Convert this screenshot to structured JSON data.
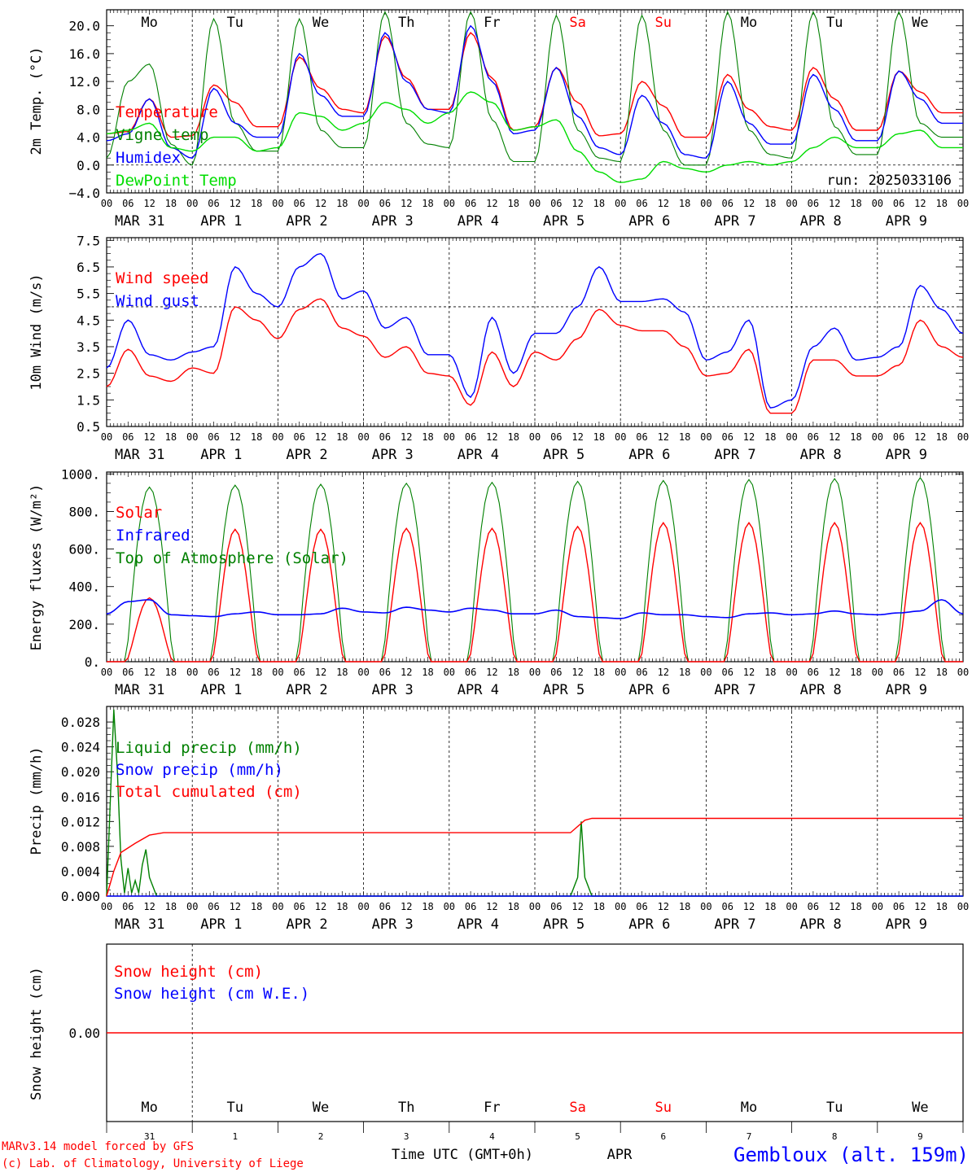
{
  "days": [
    {
      "abbr": "Mo",
      "color": "#000000",
      "date_label": "MAR 31",
      "day_num": "31"
    },
    {
      "abbr": "Tu",
      "color": "#000000",
      "date_label": "APR  1",
      "day_num": "1"
    },
    {
      "abbr": "We",
      "color": "#000000",
      "date_label": "APR  2",
      "day_num": "2"
    },
    {
      "abbr": "Th",
      "color": "#000000",
      "date_label": "APR  3",
      "day_num": "3"
    },
    {
      "abbr": "Fr",
      "color": "#000000",
      "date_label": "APR  4",
      "day_num": "4"
    },
    {
      "abbr": "Sa",
      "color": "#ff0000",
      "date_label": "APR  5",
      "day_num": "5"
    },
    {
      "abbr": "Su",
      "color": "#ff0000",
      "date_label": "APR  6",
      "day_num": "6"
    },
    {
      "abbr": "Mo",
      "color": "#000000",
      "date_label": "APR  7",
      "day_num": "7"
    },
    {
      "abbr": "Tu",
      "color": "#000000",
      "date_label": "APR  8",
      "day_num": "8"
    },
    {
      "abbr": "We",
      "color": "#000000",
      "date_label": "APR  9",
      "day_num": "9"
    }
  ],
  "hour_ticks": [
    "00",
    "06",
    "12",
    "18"
  ],
  "footer": {
    "credit_line1": "MARv3.14 model forced by GFS",
    "credit_line2": "(c) Lab. of Climatology, University of Liege",
    "xaxis_label": "Time UTC (GMT+0h)",
    "month": "APR",
    "station": "Gembloux (alt. 159m)"
  },
  "colors": {
    "red": "#ff0000",
    "blue": "#0000ff",
    "green": "#008000",
    "lightgreen": "#00dd00"
  },
  "chart_data": [
    {
      "type": "line",
      "ylabel": "2m Temp. (°C)",
      "ylim": [
        -4,
        22
      ],
      "yticks": [
        "20.0",
        "16.0",
        "12.0",
        "8.0",
        "4.0",
        "0.0",
        "−4.0"
      ],
      "yticks_values": [
        20,
        16,
        12,
        8,
        4,
        0,
        -4
      ],
      "ref_line": 0,
      "annotation": "run: 2025033106",
      "x_start": "2025-03-31 00:00 UTC",
      "x_step_hours": 6,
      "series": [
        {
          "name": "Temperature",
          "color": "#ff0000",
          "values": [
            4.5,
            4.8,
            9.5,
            4.0,
            4.2,
            11.5,
            9.0,
            5.5,
            5.5,
            15.5,
            11.0,
            8.0,
            7.5,
            18.5,
            12.5,
            8.0,
            8.0,
            19.0,
            12.5,
            5.0,
            5.5,
            14.0,
            9.0,
            4.2,
            4.5,
            12.0,
            8.5,
            4.0,
            4.0,
            13.0,
            8.0,
            5.5,
            5.0,
            14.0,
            9.5,
            5.0,
            5.0,
            13.5,
            10.5,
            7.5,
            7.5
          ]
        },
        {
          "name": "Vigne temp",
          "color": "#008000",
          "values": [
            1.0,
            12.0,
            14.5,
            3.0,
            0.0,
            21.0,
            6.0,
            2.0,
            2.0,
            21.0,
            5.0,
            2.5,
            2.5,
            22.0,
            6.0,
            3.0,
            2.5,
            22.0,
            6.5,
            0.5,
            0.5,
            21.5,
            5.0,
            1.0,
            0.5,
            21.5,
            5.0,
            0.0,
            0.0,
            22.0,
            5.0,
            1.5,
            1.0,
            22.0,
            5.5,
            1.5,
            1.5,
            22.0,
            6.0,
            4.0,
            4.0
          ]
        },
        {
          "name": "Humidex",
          "color": "#0000ff",
          "values": [
            3.5,
            4.5,
            9.5,
            2.5,
            1.0,
            11.0,
            6.0,
            4.0,
            4.0,
            16.0,
            10.0,
            7.0,
            7.0,
            19.0,
            12.0,
            8.0,
            7.5,
            20.0,
            12.0,
            4.5,
            5.0,
            14.0,
            7.0,
            2.5,
            1.5,
            10.0,
            6.0,
            1.5,
            1.0,
            12.0,
            6.0,
            3.0,
            3.0,
            13.0,
            8.0,
            3.5,
            3.5,
            13.5,
            9.5,
            6.0,
            6.0
          ]
        },
        {
          "name": "DewPoint Temp",
          "color": "#00dd00",
          "values": [
            4.5,
            5.0,
            6.0,
            2.5,
            2.0,
            4.0,
            4.0,
            2.0,
            2.5,
            7.5,
            7.0,
            5.0,
            6.0,
            9.0,
            8.0,
            6.0,
            7.5,
            10.5,
            9.0,
            5.0,
            5.5,
            6.5,
            2.0,
            -1.0,
            -2.5,
            -2.0,
            0.5,
            -0.5,
            -1.0,
            0.0,
            0.5,
            0.0,
            0.5,
            2.5,
            4.0,
            2.5,
            2.5,
            4.5,
            5.0,
            2.5,
            2.5
          ]
        }
      ]
    },
    {
      "type": "line",
      "ylabel": "10m Wind (m/s)",
      "ylim": [
        0.5,
        7.5
      ],
      "yticks": [
        "7.5",
        "6.5",
        "5.5",
        "4.5",
        "3.5",
        "2.5",
        "1.5",
        "0.5"
      ],
      "yticks_values": [
        7.5,
        6.5,
        5.5,
        4.5,
        3.5,
        2.5,
        1.5,
        0.5
      ],
      "ref_line": 5.0,
      "x_start": "2025-03-31 00:00 UTC",
      "x_step_hours": 6,
      "series": [
        {
          "name": "Wind speed",
          "color": "#ff0000",
          "values": [
            2.0,
            3.4,
            2.4,
            2.2,
            2.7,
            2.5,
            5.0,
            4.5,
            3.8,
            4.9,
            5.3,
            4.2,
            3.9,
            3.1,
            3.5,
            2.5,
            2.4,
            1.3,
            3.3,
            2.0,
            3.3,
            3.0,
            3.8,
            4.9,
            4.3,
            4.1,
            4.1,
            3.5,
            2.4,
            2.5,
            3.4,
            1.0,
            1.0,
            3.0,
            3.0,
            2.4,
            2.4,
            2.8,
            4.5,
            3.5,
            3.1
          ]
        },
        {
          "name": "Wind gust",
          "color": "#0000ff",
          "values": [
            2.7,
            4.5,
            3.2,
            3.0,
            3.3,
            3.5,
            6.5,
            5.5,
            5.0,
            6.5,
            7.0,
            5.3,
            5.6,
            4.2,
            4.6,
            3.2,
            3.2,
            1.6,
            4.6,
            2.5,
            4.0,
            4.0,
            5.0,
            6.5,
            5.2,
            5.2,
            5.3,
            4.8,
            3.0,
            3.3,
            4.5,
            1.2,
            1.5,
            3.5,
            4.2,
            3.0,
            3.1,
            3.5,
            5.8,
            4.9,
            4.0
          ]
        }
      ]
    },
    {
      "type": "line",
      "ylabel": "Energy fluxes (W/m²)",
      "ylim": [
        0,
        1000
      ],
      "yticks": [
        "1000.",
        "800.",
        "600.",
        "400.",
        "200.",
        "0."
      ],
      "yticks_values": [
        1000,
        800,
        600,
        400,
        200,
        0
      ],
      "daily_peaks": {
        "solar_w_m2": [
          340,
          705,
          705,
          710,
          710,
          720,
          740,
          740,
          740,
          740
        ],
        "toa_solar_w_m2": [
          930,
          940,
          945,
          950,
          955,
          960,
          965,
          970,
          975,
          980
        ],
        "sunrise_hour_utc": 5.5,
        "sunset_hour_utc": 18.5
      },
      "series": [
        {
          "name": "Solar",
          "color": "#ff0000"
        },
        {
          "name": "Infrared",
          "color": "#0000ff",
          "values": [
            255,
            320,
            330,
            250,
            245,
            240,
            255,
            265,
            250,
            250,
            255,
            285,
            265,
            260,
            290,
            275,
            265,
            285,
            275,
            255,
            255,
            275,
            240,
            235,
            230,
            260,
            250,
            250,
            240,
            235,
            255,
            260,
            250,
            255,
            270,
            255,
            250,
            260,
            270,
            330,
            255
          ]
        },
        {
          "name": "Top of Atmosphere (Solar)",
          "color": "#008000"
        }
      ]
    },
    {
      "type": "line",
      "ylabel": "Precip (mm/h)",
      "ylim": [
        0,
        0.03
      ],
      "yticks": [
        "0.028",
        "0.024",
        "0.020",
        "0.016",
        "0.012",
        "0.008",
        "0.004",
        "0.000"
      ],
      "yticks_values": [
        0.028,
        0.024,
        0.02,
        0.016,
        0.012,
        0.008,
        0.004,
        0.0
      ],
      "series": [
        {
          "name": "Liquid precip (mm/h)",
          "color": "#008000",
          "points": [
            [
              0,
              0
            ],
            [
              2,
              0.03
            ],
            [
              3,
              0.02
            ],
            [
              4,
              0.006
            ],
            [
              5,
              0.0005
            ],
            [
              6,
              0.0045
            ],
            [
              7,
              0.0005
            ],
            [
              8,
              0.0025
            ],
            [
              9,
              0.0005
            ],
            [
              10,
              0.005
            ],
            [
              11,
              0.0075
            ],
            [
              12,
              0.003
            ],
            [
              14,
              0.0
            ],
            [
              130,
              0.0
            ],
            [
              132,
              0.003
            ],
            [
              133,
              0.012
            ],
            [
              134,
              0.003
            ],
            [
              136,
              0.0
            ],
            [
              240,
              0.0
            ]
          ]
        },
        {
          "name": "Snow precip (mm/h)",
          "color": "#0000ff",
          "points": [
            [
              0,
              0
            ],
            [
              240,
              0
            ]
          ]
        },
        {
          "name": "Total cumulated (cm)",
          "color": "#ff0000",
          "points": [
            [
              0,
              0
            ],
            [
              2,
              0.004
            ],
            [
              4,
              0.007
            ],
            [
              8,
              0.0085
            ],
            [
              12,
              0.0098
            ],
            [
              16,
              0.0102
            ],
            [
              130,
              0.0102
            ],
            [
              134,
              0.0122
            ],
            [
              136,
              0.0125
            ],
            [
              240,
              0.0125
            ]
          ]
        }
      ]
    },
    {
      "type": "line",
      "ylabel": "Snow height (cm)",
      "yticks": [
        "0.00"
      ],
      "yticks_values": [
        0
      ],
      "series": [
        {
          "name": "Snow height (cm)",
          "color": "#ff0000",
          "values": [
            0,
            0
          ]
        },
        {
          "name": "Snow height (cm W.E.)",
          "color": "#0000ff"
        }
      ]
    }
  ]
}
